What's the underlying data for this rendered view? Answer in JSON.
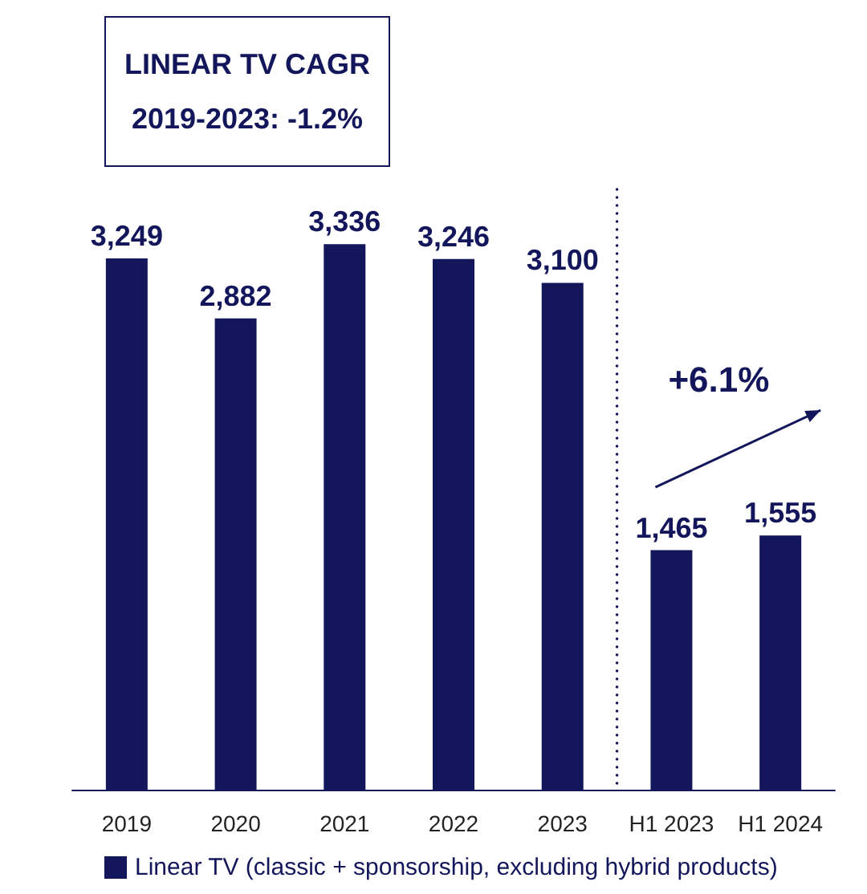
{
  "chart_data": {
    "type": "bar",
    "title": "LINEAR TV CAGR\n2019-2023: -1.2%",
    "categories": [
      "2019",
      "2020",
      "2021",
      "2022",
      "2023",
      "H1 2023",
      "H1 2024"
    ],
    "series": [
      {
        "name": "Linear TV (classic + sponsorship, excluding hybrid products)",
        "color": "#13165a",
        "values": [
          3249,
          2882,
          3336,
          3246,
          3100,
          1465,
          1555
        ],
        "value_labels": [
          "3,249",
          "2,882",
          "3,336",
          "3,246",
          "3,100",
          "1,465",
          "1,555"
        ]
      }
    ],
    "annotations": [
      "+6.1%"
    ],
    "legend": "bottom",
    "grid": false
  }
}
